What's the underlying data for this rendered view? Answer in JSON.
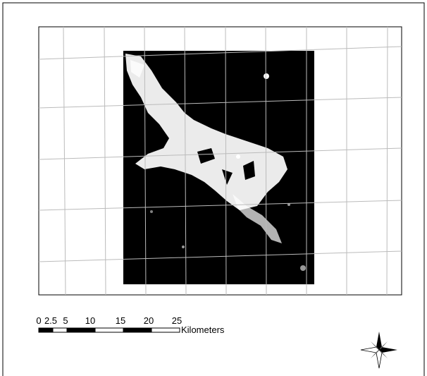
{
  "scale_bar": {
    "labels": [
      "0",
      "2.5",
      "5",
      "10",
      "15",
      "20",
      "25"
    ],
    "unit": "Kilometers"
  }
}
